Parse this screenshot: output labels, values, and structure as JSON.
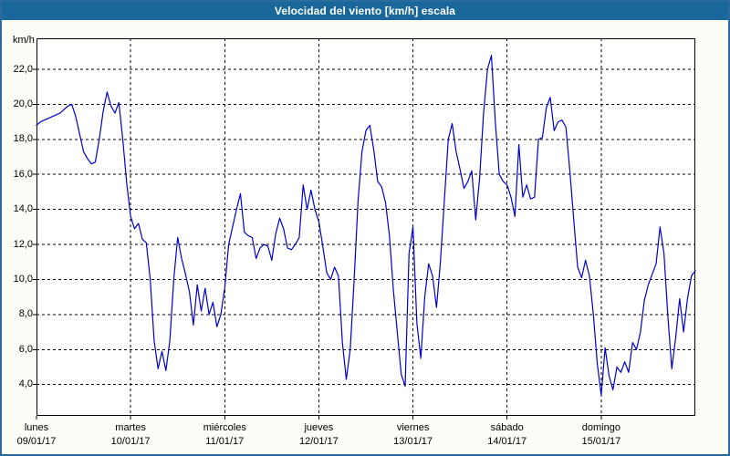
{
  "window": {
    "title": "Velocidad del viento [km/h] escala"
  },
  "colors": {
    "titlebar_bg": "#1a689b",
    "title_text": "#ffffff",
    "window_border": "#2b6a9c",
    "page_bg": "#fbfdf6",
    "plot_bg": "#ffffff",
    "grid": "#000000",
    "axis": "#000000",
    "line": "#0000cd",
    "label_text": "#000000"
  },
  "chart_data": {
    "type": "line",
    "title": "Velocidad del viento [km/h] escala",
    "ylabel_unit": "km/h",
    "decimal_separator": ",",
    "grid": "dashed",
    "ylim_plot": [
      2.2,
      23.8
    ],
    "y_ticks": [
      4,
      6,
      8,
      10,
      12,
      14,
      16,
      18,
      20,
      22
    ],
    "y_tick_labels": [
      "4,0",
      "6,0",
      "8,0",
      "10,0",
      "12,0",
      "14,0",
      "16,0",
      "18,0",
      "20,0",
      "22,0"
    ],
    "days": [
      {
        "label": "lunes",
        "date": "09/01/17"
      },
      {
        "label": "martes",
        "date": "10/01/17"
      },
      {
        "label": "miércoles",
        "date": "11/01/17"
      },
      {
        "label": "jueves",
        "date": "12/01/17"
      },
      {
        "label": "viernes",
        "date": "13/01/17"
      },
      {
        "label": "sábado",
        "date": "14/01/17"
      },
      {
        "label": "domingo",
        "date": "15/01/17"
      }
    ],
    "samples_per_day": 24,
    "series": [
      {
        "name": "Velocidad del viento [km/h]",
        "color": "#0000cd",
        "values": [
          18.8,
          19.0,
          19.1,
          19.2,
          19.3,
          19.4,
          19.5,
          19.7,
          19.9,
          20.0,
          19.3,
          18.3,
          17.3,
          16.9,
          16.6,
          16.7,
          18.0,
          19.6,
          20.7,
          19.9,
          19.5,
          20.1,
          18.0,
          15.5,
          13.6,
          12.9,
          13.2,
          12.3,
          12.1,
          10.0,
          6.5,
          4.9,
          5.9,
          4.8,
          6.5,
          10.0,
          12.4,
          11.2,
          10.3,
          9.3,
          7.4,
          9.7,
          8.2,
          9.5,
          8.0,
          8.7,
          7.3,
          8.0,
          9.5,
          12.0,
          13.0,
          14.0,
          14.9,
          12.7,
          12.5,
          12.4,
          11.2,
          11.8,
          12.0,
          11.9,
          11.1,
          12.6,
          13.5,
          12.9,
          11.8,
          11.7,
          12.0,
          12.4,
          15.4,
          14.0,
          15.1,
          14.0,
          13.3,
          11.9,
          10.4,
          10.0,
          10.7,
          10.2,
          6.4,
          4.3,
          6.0,
          10.0,
          14.5,
          17.3,
          18.5,
          18.8,
          17.4,
          15.6,
          15.3,
          14.4,
          12.5,
          9.4,
          7.0,
          4.6,
          3.9,
          11.5,
          13.0,
          7.5,
          5.5,
          9.0,
          10.9,
          10.2,
          8.4,
          11.0,
          14.5,
          18.0,
          18.9,
          17.3,
          16.3,
          15.2,
          15.6,
          16.2,
          13.4,
          15.8,
          19.5,
          22.0,
          22.8,
          19.0,
          16.0,
          15.6,
          15.4,
          14.7,
          13.6,
          17.7,
          14.7,
          15.4,
          14.6,
          14.7,
          18.0,
          18.1,
          19.8,
          20.4,
          18.5,
          19.0,
          19.1,
          18.7,
          16.2,
          13.4,
          10.7,
          10.1,
          11.1,
          10.2,
          8.0,
          5.2,
          3.4,
          6.1,
          4.5,
          3.7,
          5.0,
          4.7,
          5.3,
          4.7,
          6.4,
          6.0,
          7.0,
          8.8,
          9.7,
          10.3,
          10.9,
          13.0,
          11.5,
          7.9,
          4.9,
          6.7,
          8.9,
          7.0,
          8.9,
          10.2,
          10.5
        ]
      }
    ]
  }
}
